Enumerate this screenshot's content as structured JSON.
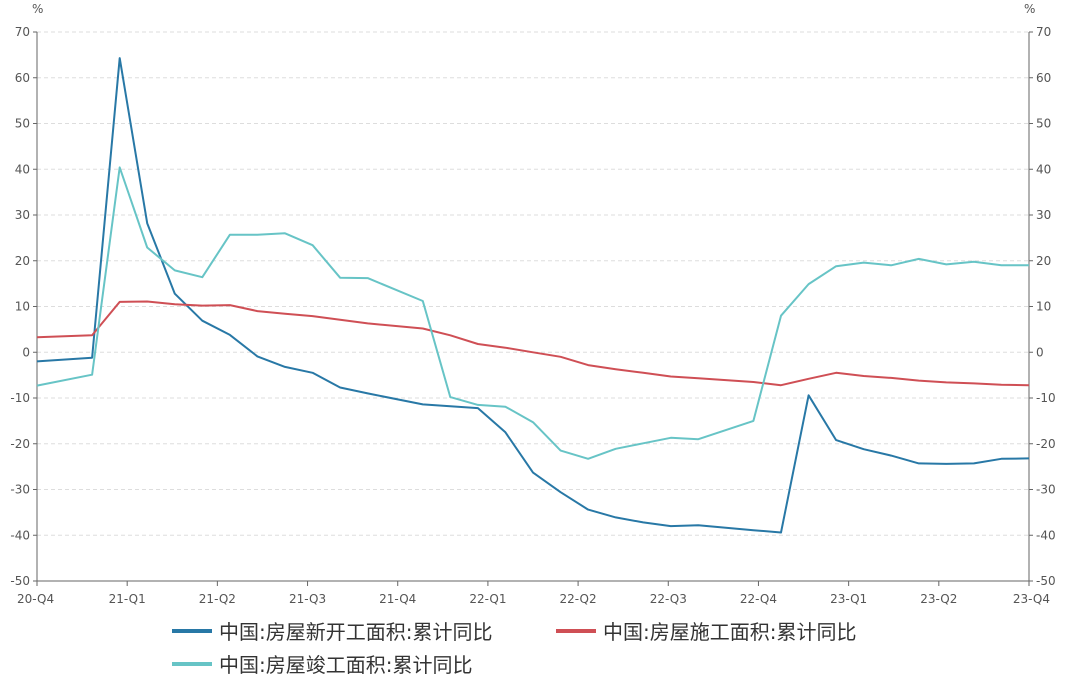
{
  "chart_data": {
    "type": "line",
    "unit_left": "%",
    "unit_right": "%",
    "ylim": [
      -50,
      70
    ],
    "yticks": [
      70,
      60,
      50,
      40,
      30,
      20,
      10,
      0,
      -10,
      -20,
      -30,
      -40,
      -50
    ],
    "x": [
      "2020-12",
      "2021-02",
      "2021-03",
      "2021-04",
      "2021-05",
      "2021-06",
      "2021-07",
      "2021-08",
      "2021-09",
      "2021-10",
      "2021-11",
      "2021-12",
      "2022-02",
      "2022-03",
      "2022-04",
      "2022-05",
      "2022-06",
      "2022-07",
      "2022-08",
      "2022-09",
      "2022-10",
      "2022-11",
      "2022-12",
      "2023-02",
      "2023-03",
      "2023-04",
      "2023-05",
      "2023-06",
      "2023-07",
      "2023-08",
      "2023-09",
      "2023-10",
      "2023-11",
      "2023-12"
    ],
    "x_tick_labels": [
      "20-Q4",
      "21-Q1",
      "21-Q2",
      "21-Q3",
      "21-Q4",
      "22-Q1",
      "22-Q2",
      "22-Q3",
      "22-Q4",
      "23-Q1",
      "23-Q2",
      "23-Q4"
    ],
    "grid": true,
    "legend_position": "bottom",
    "series": [
      {
        "name": "中国:房屋新开工面积:累计同比",
        "color": "#2878a6",
        "values": [
          -2.0,
          -1.2,
          64.3,
          28.2,
          12.8,
          6.9,
          3.8,
          -0.9,
          -3.2,
          -4.5,
          -7.7,
          -9.0,
          -11.4,
          -11.8,
          -12.2,
          -17.5,
          -26.3,
          -30.6,
          -34.4,
          -36.1,
          -37.2,
          -38.0,
          -37.8,
          -38.9,
          -39.4,
          -9.4,
          -19.2,
          -21.2,
          -22.6,
          -24.3,
          -24.4,
          -24.3,
          -23.3,
          -23.2
        ]
      },
      {
        "name": "中国:房屋施工面积:累计同比",
        "color": "#cf4f55",
        "values": [
          3.3,
          3.7,
          11.0,
          11.1,
          10.5,
          10.2,
          10.3,
          9.0,
          8.4,
          7.9,
          7.1,
          6.3,
          5.2,
          3.7,
          1.8,
          1.0,
          0.0,
          -1.0,
          -2.8,
          -3.7,
          -4.5,
          -5.3,
          -5.7,
          -6.5,
          -7.2,
          -5.8,
          -4.5,
          -5.2,
          -5.6,
          -6.2,
          -6.6,
          -6.8,
          -7.1,
          -7.2
        ]
      },
      {
        "name": "中国:房屋竣工面积:累计同比",
        "color": "#67c4c6",
        "values": [
          -7.3,
          -4.9,
          40.4,
          22.9,
          17.9,
          16.4,
          25.7,
          25.7,
          26.0,
          23.4,
          16.3,
          16.2,
          11.2,
          -9.8,
          -11.5,
          -11.9,
          -15.3,
          -21.5,
          -23.3,
          -21.1,
          -19.9,
          -18.7,
          -19.0,
          -15.0,
          8.0,
          14.9,
          18.8,
          19.6,
          19.0,
          20.4,
          19.2,
          19.8,
          19.0,
          19.0
        ]
      }
    ]
  }
}
